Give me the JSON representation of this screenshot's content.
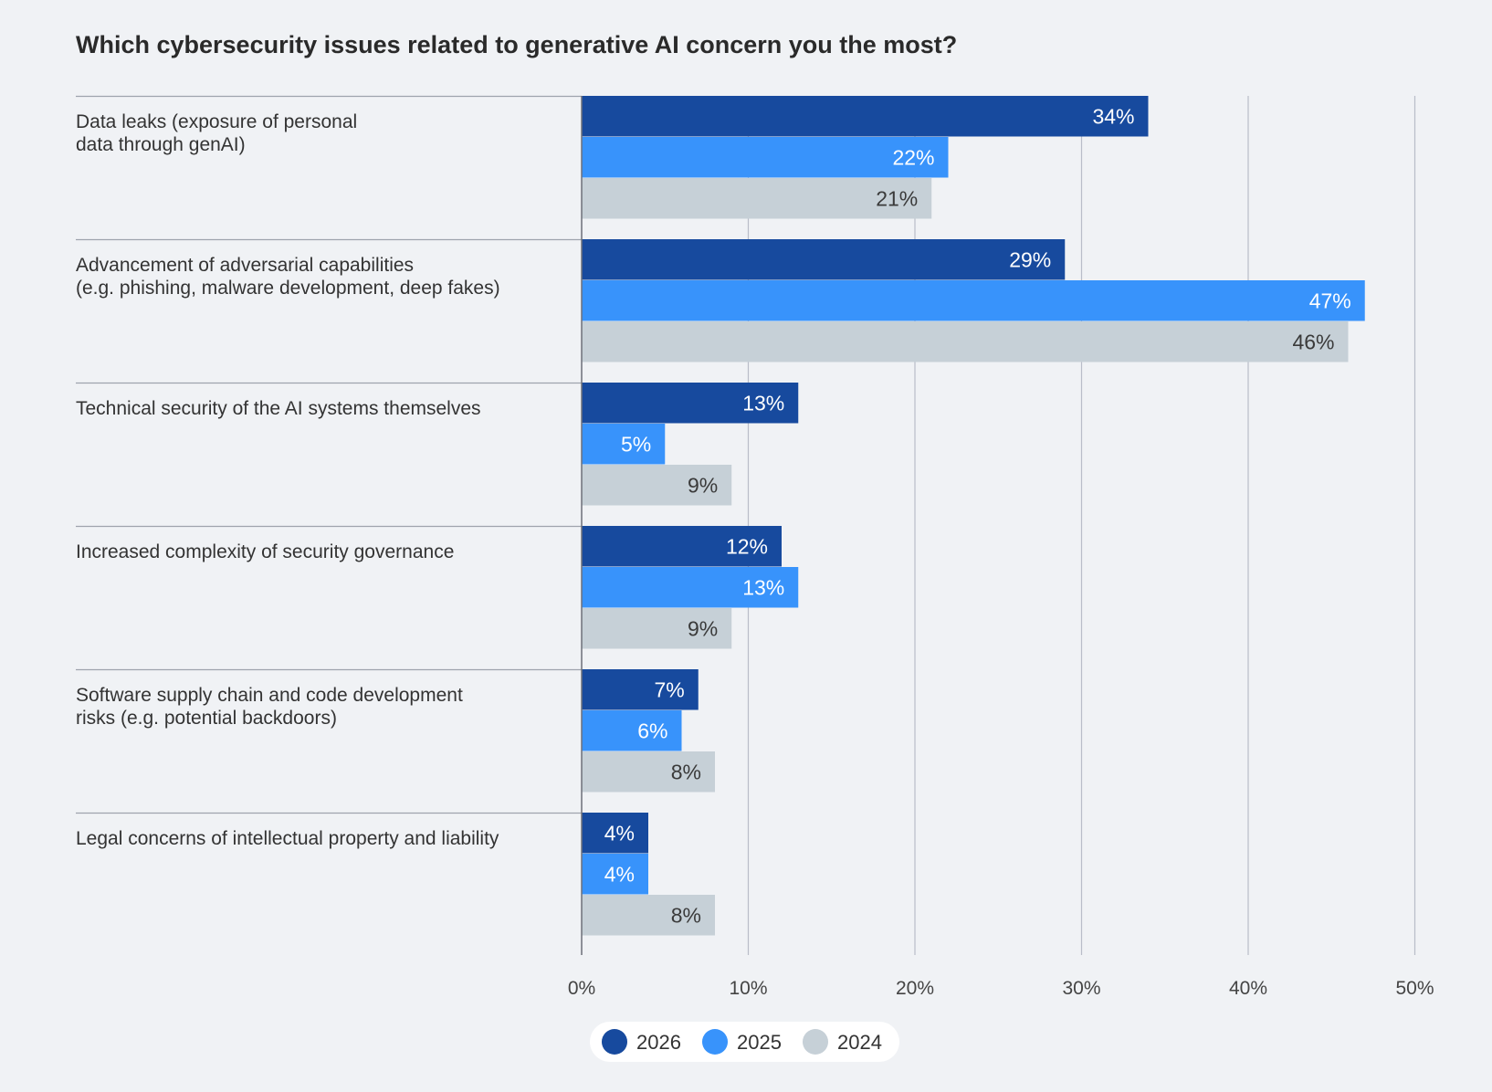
{
  "chart_data": {
    "type": "bar",
    "orientation": "horizontal",
    "title": "Which cybersecurity issues related to generative AI concern you the most?",
    "categories": [
      [
        "Data leaks (exposure of personal",
        "data through genAI)"
      ],
      [
        "Advancement of adversarial capabilities",
        "(e.g. phishing, malware development, deep fakes)"
      ],
      [
        "Technical security of the AI systems themselves"
      ],
      [
        "Increased complexity of security governance"
      ],
      [
        "Software supply chain and code development",
        "risks (e.g. potential backdoors)"
      ],
      [
        "Legal concerns of intellectual property and liability"
      ]
    ],
    "series": [
      {
        "name": "2026",
        "color": "#174a9e",
        "label_color": "#ffffff",
        "values": [
          34,
          29,
          13,
          12,
          7,
          4
        ],
        "labels": [
          "34%",
          "29%",
          "13%",
          "12%",
          "7%",
          "4%"
        ]
      },
      {
        "name": "2025",
        "color": "#3893fb",
        "label_color": "#ffffff",
        "values": [
          22,
          47,
          5,
          13,
          6,
          4
        ],
        "labels": [
          "22%",
          "47%",
          "5%",
          "13%",
          "6%",
          "4%"
        ]
      },
      {
        "name": "2024",
        "color": "#c6d0d7",
        "label_color": "#3a3a3a",
        "values": [
          21,
          46,
          9,
          9,
          8,
          8
        ],
        "labels": [
          "21%",
          "46%",
          "9%",
          "9%",
          "8%",
          "8%"
        ]
      }
    ],
    "xlim": [
      0,
      50
    ],
    "xticks": [
      0,
      10,
      20,
      30,
      40,
      50
    ],
    "xtick_labels": [
      "0%",
      "10%",
      "20%",
      "30%",
      "40%",
      "50%"
    ],
    "xlabel": "",
    "ylabel": "",
    "grid": "vertical",
    "legend_position": "bottom-center",
    "colors": {
      "grid": "#b9bdc8",
      "separator": "#9ea3ad",
      "axis": "#6d7079",
      "background": "#f0f2f5",
      "legend_background": "#ffffff"
    }
  }
}
